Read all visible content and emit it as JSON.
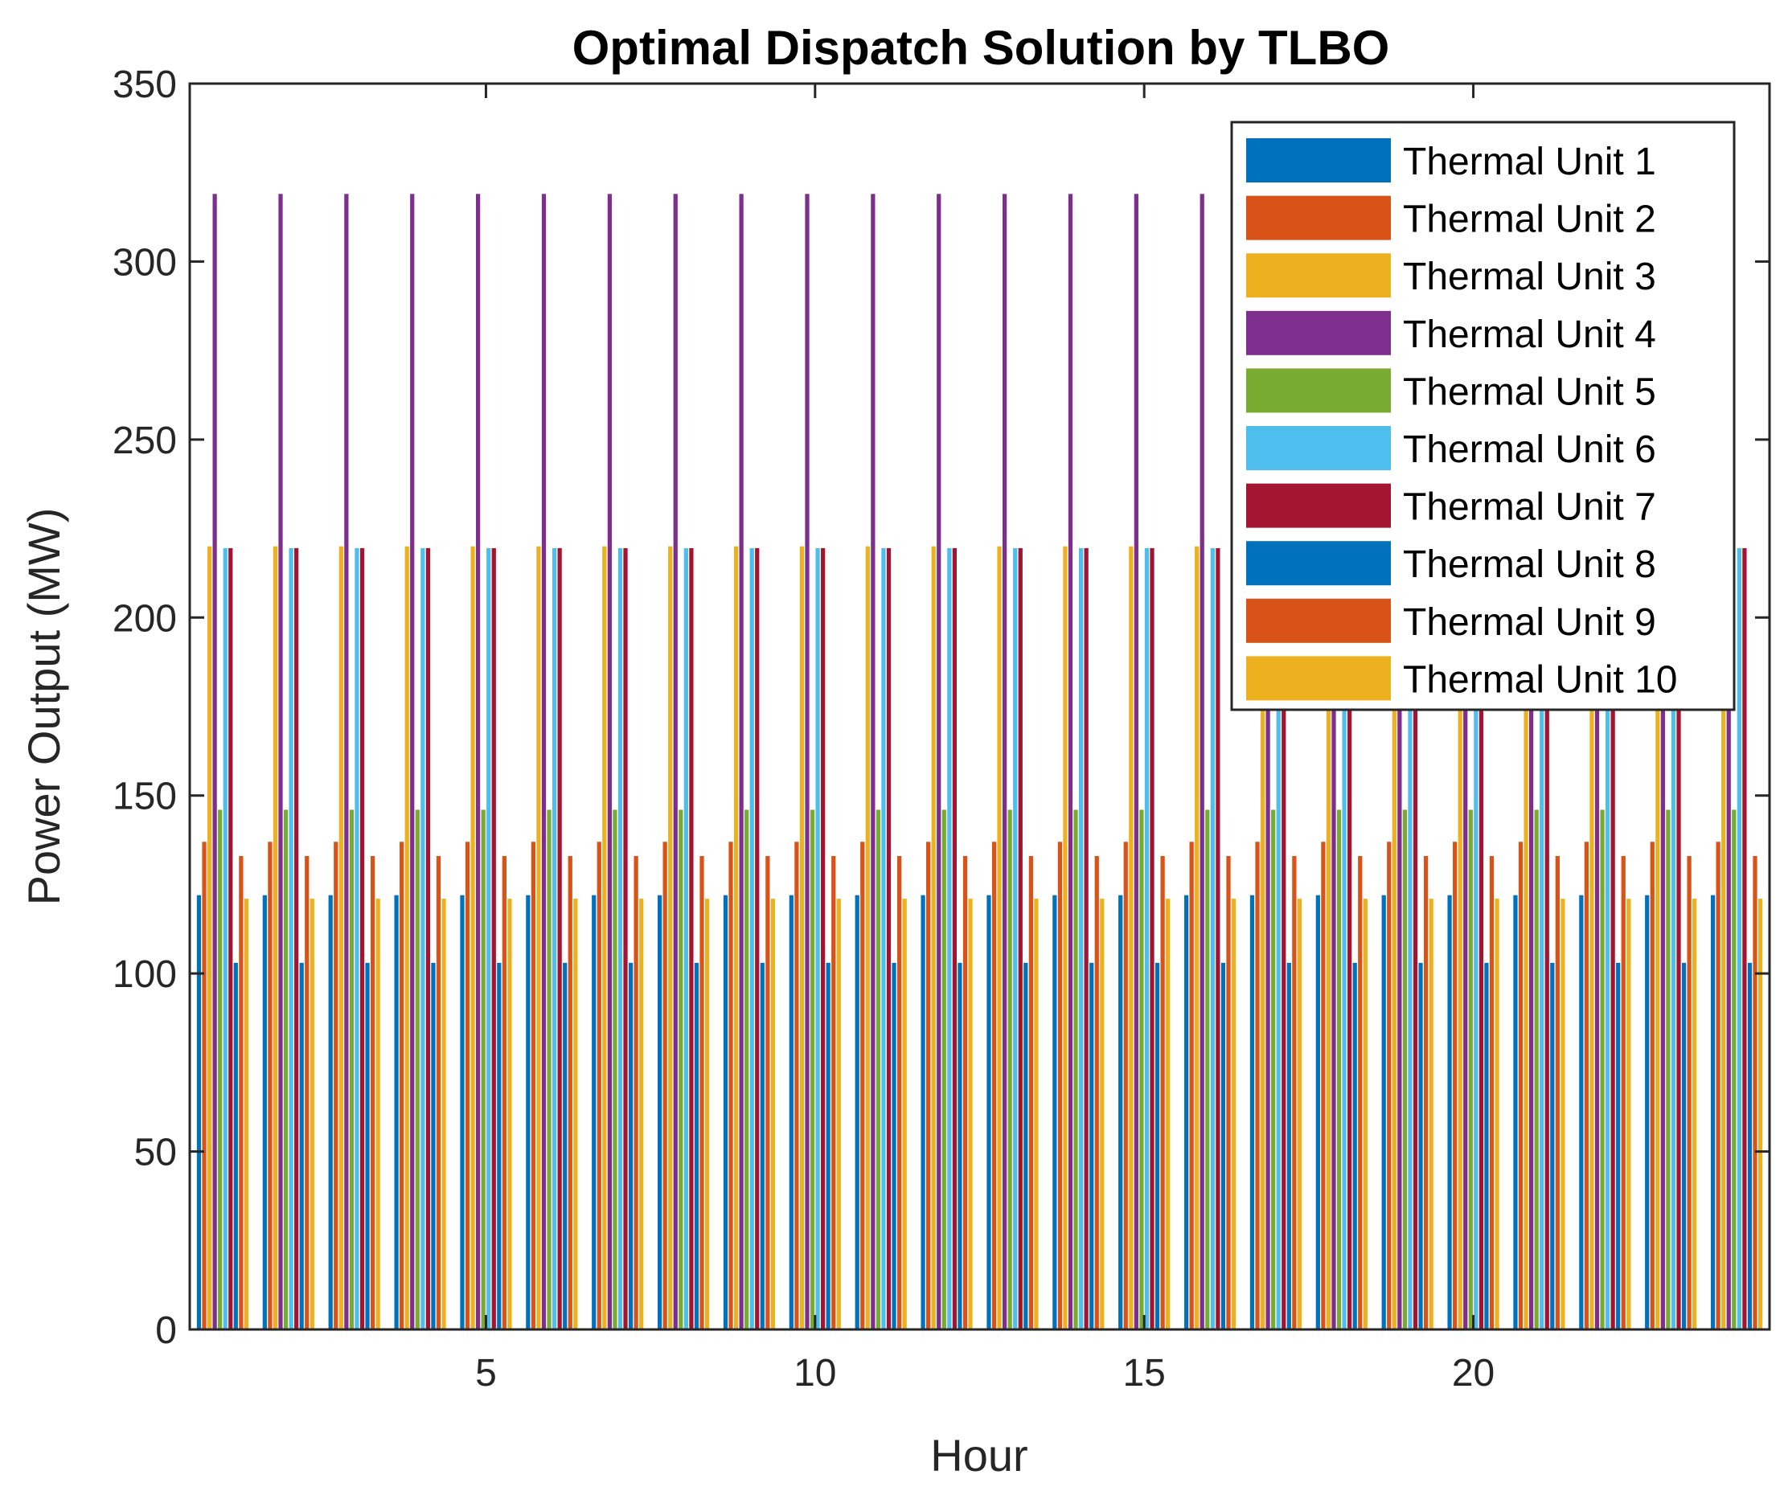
{
  "chart_data": {
    "type": "bar",
    "title": "Optimal Dispatch Solution by TLBO",
    "xlabel": "Hour",
    "ylabel": "Power Output (MW)",
    "xlim": [
      0.5,
      24.5
    ],
    "ylim": [
      0,
      350
    ],
    "xticks": [
      5,
      10,
      15,
      20
    ],
    "yticks": [
      0,
      50,
      100,
      150,
      200,
      250,
      300,
      350
    ],
    "categories": [
      1,
      2,
      3,
      4,
      5,
      6,
      7,
      8,
      9,
      10,
      11,
      12,
      13,
      14,
      15,
      16,
      17,
      18,
      19,
      20,
      21,
      22,
      23,
      24
    ],
    "legend_position": "top-right",
    "grid": false,
    "series": [
      {
        "name": "Thermal Unit 1",
        "color": "#0072BD",
        "values": [
          122,
          122,
          122,
          122,
          122,
          122,
          122,
          122,
          122,
          122,
          122,
          122,
          122,
          122,
          122,
          122,
          122,
          122,
          122,
          122,
          122,
          122,
          122,
          122
        ]
      },
      {
        "name": "Thermal Unit 2",
        "color": "#D95319",
        "values": [
          137,
          137,
          137,
          137,
          137,
          137,
          137,
          137,
          137,
          137,
          137,
          137,
          137,
          137,
          137,
          137,
          137,
          137,
          137,
          137,
          137,
          137,
          137,
          137
        ]
      },
      {
        "name": "Thermal Unit 3",
        "color": "#EDB120",
        "values": [
          220,
          220,
          220,
          220,
          220,
          220,
          220,
          220,
          220,
          220,
          220,
          220,
          220,
          220,
          220,
          220,
          220,
          220,
          220,
          220,
          220,
          220,
          220,
          220
        ]
      },
      {
        "name": "Thermal Unit 4",
        "color": "#7E2F8E",
        "values": [
          319,
          319,
          319,
          319,
          319,
          319,
          319,
          319,
          319,
          319,
          319,
          319,
          319,
          319,
          319,
          319,
          319,
          319,
          319,
          319,
          319,
          319,
          319,
          319
        ]
      },
      {
        "name": "Thermal Unit 5",
        "color": "#77AC30",
        "values": [
          146,
          146,
          146,
          146,
          146,
          146,
          146,
          146,
          146,
          146,
          146,
          146,
          146,
          146,
          146,
          146,
          146,
          146,
          146,
          146,
          146,
          146,
          146,
          146
        ]
      },
      {
        "name": "Thermal Unit 6",
        "color": "#4DBEEE",
        "values": [
          219.5,
          219.5,
          219.5,
          219.5,
          219.5,
          219.5,
          219.5,
          219.5,
          219.5,
          219.5,
          219.5,
          219.5,
          219.5,
          219.5,
          219.5,
          219.5,
          219.5,
          219.5,
          219.5,
          219.5,
          219.5,
          219.5,
          219.5,
          219.5
        ]
      },
      {
        "name": "Thermal Unit 7",
        "color": "#A2142F",
        "values": [
          219.5,
          219.5,
          219.5,
          219.5,
          219.5,
          219.5,
          219.5,
          219.5,
          219.5,
          219.5,
          219.5,
          219.5,
          219.5,
          219.5,
          219.5,
          219.5,
          219.5,
          219.5,
          219.5,
          219.5,
          219.5,
          219.5,
          219.5,
          219.5
        ]
      },
      {
        "name": "Thermal Unit 8",
        "color": "#0072BD",
        "values": [
          103,
          103,
          103,
          103,
          103,
          103,
          103,
          103,
          103,
          103,
          103,
          103,
          103,
          103,
          103,
          103,
          103,
          103,
          103,
          103,
          103,
          103,
          103,
          103
        ]
      },
      {
        "name": "Thermal Unit 9",
        "color": "#D95319",
        "values": [
          133,
          133,
          133,
          133,
          133,
          133,
          133,
          133,
          133,
          133,
          133,
          133,
          133,
          133,
          133,
          133,
          133,
          133,
          133,
          133,
          133,
          133,
          133,
          133
        ]
      },
      {
        "name": "Thermal Unit 10",
        "color": "#EDB120",
        "values": [
          121,
          121,
          121,
          121,
          121,
          121,
          121,
          121,
          121,
          121,
          121,
          121,
          121,
          121,
          121,
          121,
          121,
          121,
          121,
          121,
          121,
          121,
          121,
          121
        ]
      }
    ]
  }
}
